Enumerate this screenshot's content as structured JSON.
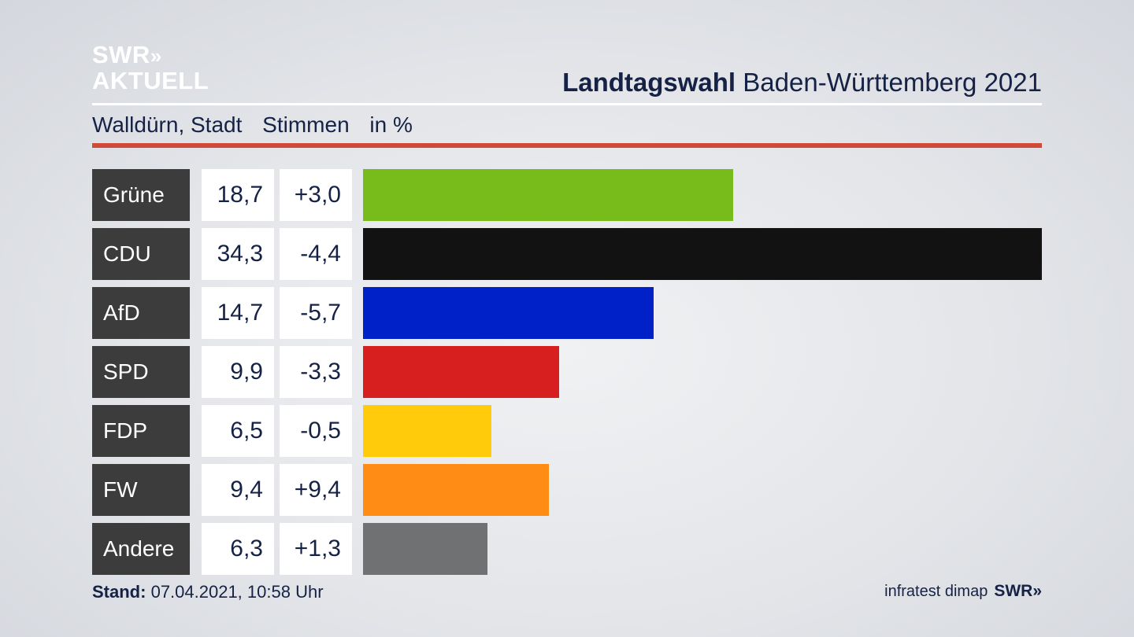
{
  "brand": {
    "logo_line1": "SWR",
    "logo_arrows": "»",
    "logo_line2": "AKTUELL"
  },
  "header": {
    "title_bold": "Landtagswahl",
    "title_rest": "Baden-Württemberg 2021"
  },
  "subtitle": {
    "place": "Walldürn, Stadt",
    "measure": "Stimmen",
    "unit": "in %"
  },
  "footer": {
    "stand_label": "Stand:",
    "stand_value": "07.04.2021, 10:58 Uhr",
    "source": "infratest dimap",
    "source_brand": "SWR",
    "source_arrows": "»"
  },
  "colors": {
    "accent_rule": "#cf4a39",
    "label_bg": "#3c3c3c"
  },
  "chart_data": {
    "type": "bar",
    "orientation": "horizontal",
    "categories": [
      "Grüne",
      "CDU",
      "AfD",
      "SPD",
      "FDP",
      "FW",
      "Andere"
    ],
    "values": [
      18.7,
      34.3,
      14.7,
      9.9,
      6.5,
      9.4,
      6.3
    ],
    "value_labels": [
      "18,7",
      "34,3",
      "14,7",
      "9,9",
      "6,5",
      "9,4",
      "6,3"
    ],
    "differences": [
      3.0,
      -4.4,
      -5.7,
      -3.3,
      -0.5,
      9.4,
      1.3
    ],
    "difference_labels": [
      "+3,0",
      "-4,4",
      "-5,7",
      "-3,3",
      "-0,5",
      "+9,4",
      "+1,3"
    ],
    "colors": [
      "#78bc1b",
      "#121212",
      "#0021c8",
      "#d71f1f",
      "#ffcb0a",
      "#fe8c15",
      "#707173"
    ],
    "xlim": [
      0,
      34.3
    ],
    "grid": false,
    "legend": "none"
  }
}
